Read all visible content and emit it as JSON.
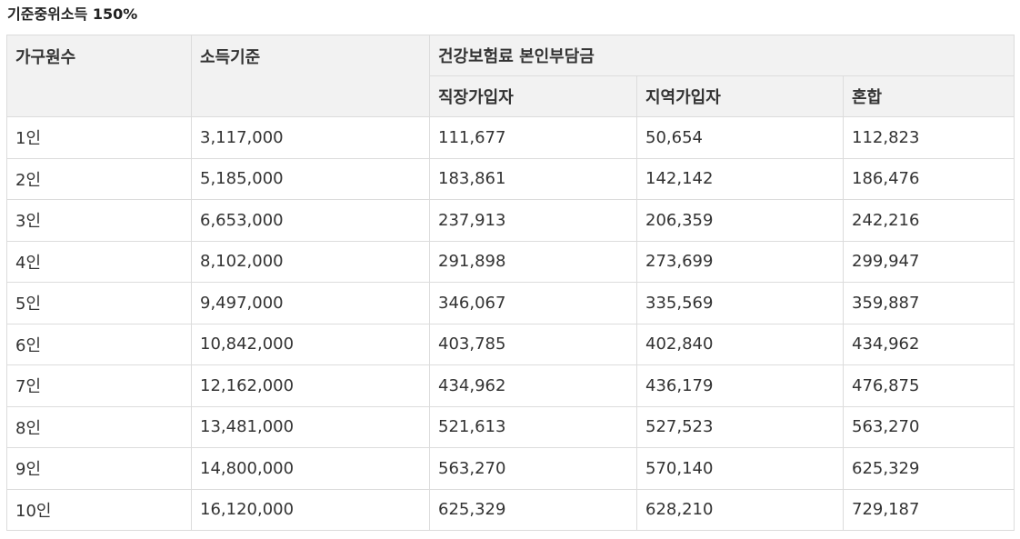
{
  "caption": "기준중위소득 150%",
  "table": {
    "headers": {
      "household": "가구원수",
      "income": "소득기준",
      "premium_group": "건강보험료 본인부담금",
      "sub": [
        "직장가입자",
        "지역가입자",
        "혼합"
      ]
    },
    "rows": [
      [
        "1인",
        "3,117,000",
        "111,677",
        "50,654",
        "112,823"
      ],
      [
        "2인",
        "5,185,000",
        "183,861",
        "142,142",
        "186,476"
      ],
      [
        "3인",
        "6,653,000",
        "237,913",
        "206,359",
        "242,216"
      ],
      [
        "4인",
        "8,102,000",
        "291,898",
        "273,699",
        "299,947"
      ],
      [
        "5인",
        "9,497,000",
        "346,067",
        "335,569",
        "359,887"
      ],
      [
        "6인",
        "10,842,000",
        "403,785",
        "402,840",
        "434,962"
      ],
      [
        "7인",
        "12,162,000",
        "434,962",
        "436,179",
        "476,875"
      ],
      [
        "8인",
        "13,481,000",
        "521,613",
        "527,523",
        "563,270"
      ],
      [
        "9인",
        "14,800,000",
        "563,270",
        "570,140",
        "625,329"
      ],
      [
        "10인",
        "16,120,000",
        "625,329",
        "628,210",
        "729,187"
      ]
    ]
  }
}
